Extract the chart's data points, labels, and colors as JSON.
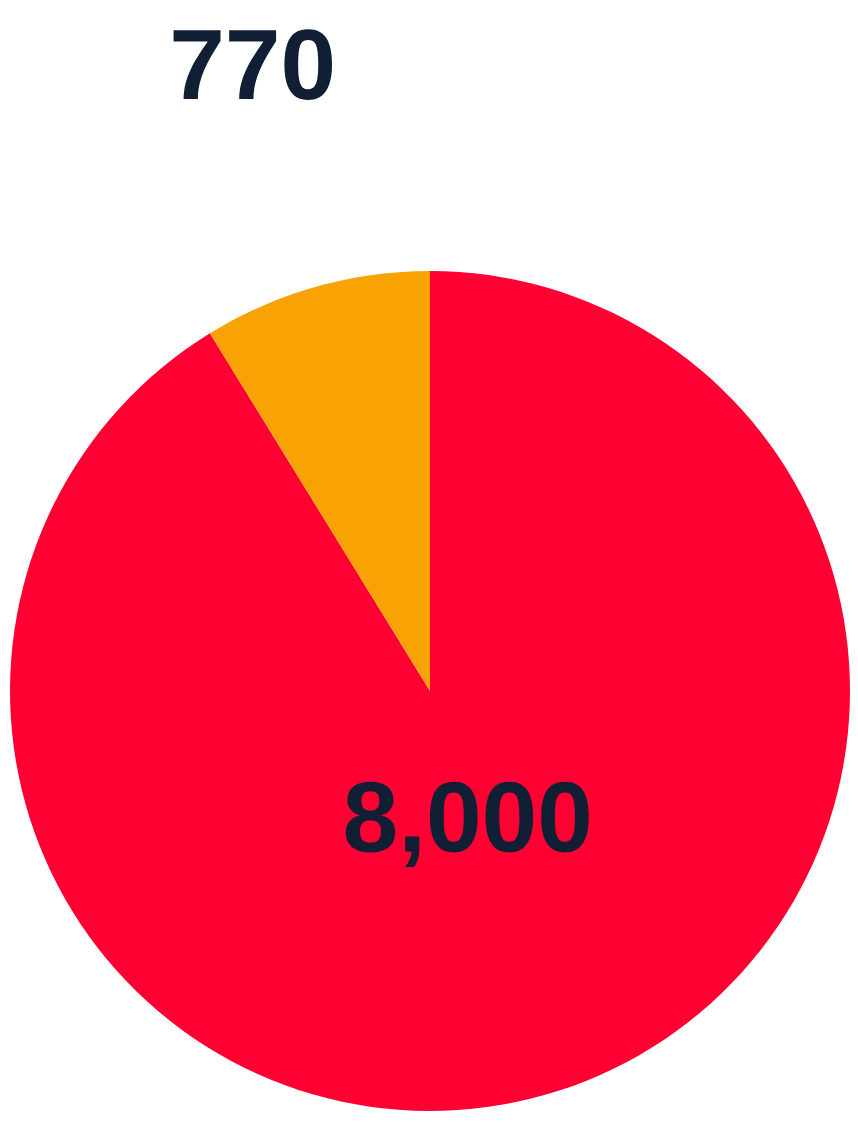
{
  "chart_data": {
    "type": "pie",
    "categories": [
      null,
      null
    ],
    "values": [
      8000,
      770
    ],
    "colors": [
      "#ff0033",
      "#f8a303"
    ],
    "value_labels": [
      "8,000",
      "770"
    ]
  }
}
